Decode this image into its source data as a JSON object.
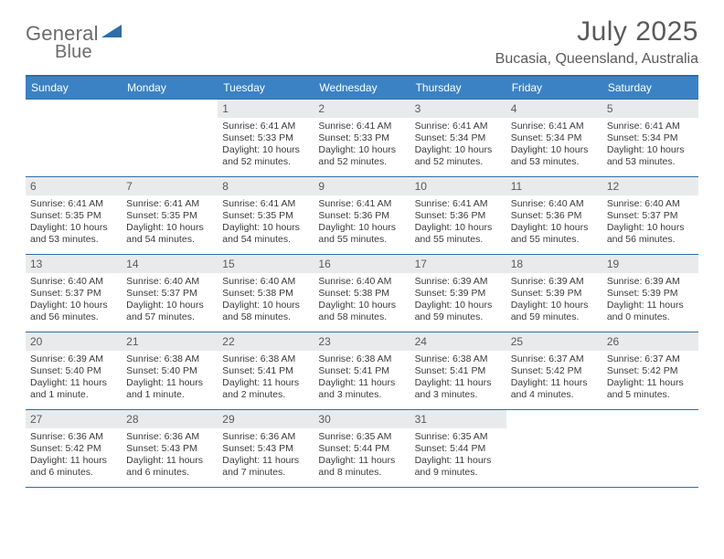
{
  "brand": {
    "word1": "General",
    "word2": "Blue"
  },
  "colors": {
    "header_bg": "#3b82c4",
    "rule": "#2e6da8",
    "daynum_bg": "#e9eaeb",
    "text": "#3a3a3a",
    "muted": "#5a5a5a",
    "logo_gray": "#6b6b6b",
    "logo_blue": "#3b82c4",
    "shape_fill": "#2e6da8"
  },
  "title": "July 2025",
  "location": "Bucasia, Queensland, Australia",
  "day_names": [
    "Sunday",
    "Monday",
    "Tuesday",
    "Wednesday",
    "Thursday",
    "Friday",
    "Saturday"
  ],
  "weeks": [
    [
      {
        "n": "",
        "sr": "",
        "ss": "",
        "dl": ""
      },
      {
        "n": "",
        "sr": "",
        "ss": "",
        "dl": ""
      },
      {
        "n": "1",
        "sr": "Sunrise: 6:41 AM",
        "ss": "Sunset: 5:33 PM",
        "dl": "Daylight: 10 hours and 52 minutes."
      },
      {
        "n": "2",
        "sr": "Sunrise: 6:41 AM",
        "ss": "Sunset: 5:33 PM",
        "dl": "Daylight: 10 hours and 52 minutes."
      },
      {
        "n": "3",
        "sr": "Sunrise: 6:41 AM",
        "ss": "Sunset: 5:34 PM",
        "dl": "Daylight: 10 hours and 52 minutes."
      },
      {
        "n": "4",
        "sr": "Sunrise: 6:41 AM",
        "ss": "Sunset: 5:34 PM",
        "dl": "Daylight: 10 hours and 53 minutes."
      },
      {
        "n": "5",
        "sr": "Sunrise: 6:41 AM",
        "ss": "Sunset: 5:34 PM",
        "dl": "Daylight: 10 hours and 53 minutes."
      }
    ],
    [
      {
        "n": "6",
        "sr": "Sunrise: 6:41 AM",
        "ss": "Sunset: 5:35 PM",
        "dl": "Daylight: 10 hours and 53 minutes."
      },
      {
        "n": "7",
        "sr": "Sunrise: 6:41 AM",
        "ss": "Sunset: 5:35 PM",
        "dl": "Daylight: 10 hours and 54 minutes."
      },
      {
        "n": "8",
        "sr": "Sunrise: 6:41 AM",
        "ss": "Sunset: 5:35 PM",
        "dl": "Daylight: 10 hours and 54 minutes."
      },
      {
        "n": "9",
        "sr": "Sunrise: 6:41 AM",
        "ss": "Sunset: 5:36 PM",
        "dl": "Daylight: 10 hours and 55 minutes."
      },
      {
        "n": "10",
        "sr": "Sunrise: 6:41 AM",
        "ss": "Sunset: 5:36 PM",
        "dl": "Daylight: 10 hours and 55 minutes."
      },
      {
        "n": "11",
        "sr": "Sunrise: 6:40 AM",
        "ss": "Sunset: 5:36 PM",
        "dl": "Daylight: 10 hours and 55 minutes."
      },
      {
        "n": "12",
        "sr": "Sunrise: 6:40 AM",
        "ss": "Sunset: 5:37 PM",
        "dl": "Daylight: 10 hours and 56 minutes."
      }
    ],
    [
      {
        "n": "13",
        "sr": "Sunrise: 6:40 AM",
        "ss": "Sunset: 5:37 PM",
        "dl": "Daylight: 10 hours and 56 minutes."
      },
      {
        "n": "14",
        "sr": "Sunrise: 6:40 AM",
        "ss": "Sunset: 5:37 PM",
        "dl": "Daylight: 10 hours and 57 minutes."
      },
      {
        "n": "15",
        "sr": "Sunrise: 6:40 AM",
        "ss": "Sunset: 5:38 PM",
        "dl": "Daylight: 10 hours and 58 minutes."
      },
      {
        "n": "16",
        "sr": "Sunrise: 6:40 AM",
        "ss": "Sunset: 5:38 PM",
        "dl": "Daylight: 10 hours and 58 minutes."
      },
      {
        "n": "17",
        "sr": "Sunrise: 6:39 AM",
        "ss": "Sunset: 5:39 PM",
        "dl": "Daylight: 10 hours and 59 minutes."
      },
      {
        "n": "18",
        "sr": "Sunrise: 6:39 AM",
        "ss": "Sunset: 5:39 PM",
        "dl": "Daylight: 10 hours and 59 minutes."
      },
      {
        "n": "19",
        "sr": "Sunrise: 6:39 AM",
        "ss": "Sunset: 5:39 PM",
        "dl": "Daylight: 11 hours and 0 minutes."
      }
    ],
    [
      {
        "n": "20",
        "sr": "Sunrise: 6:39 AM",
        "ss": "Sunset: 5:40 PM",
        "dl": "Daylight: 11 hours and 1 minute."
      },
      {
        "n": "21",
        "sr": "Sunrise: 6:38 AM",
        "ss": "Sunset: 5:40 PM",
        "dl": "Daylight: 11 hours and 1 minute."
      },
      {
        "n": "22",
        "sr": "Sunrise: 6:38 AM",
        "ss": "Sunset: 5:41 PM",
        "dl": "Daylight: 11 hours and 2 minutes."
      },
      {
        "n": "23",
        "sr": "Sunrise: 6:38 AM",
        "ss": "Sunset: 5:41 PM",
        "dl": "Daylight: 11 hours and 3 minutes."
      },
      {
        "n": "24",
        "sr": "Sunrise: 6:38 AM",
        "ss": "Sunset: 5:41 PM",
        "dl": "Daylight: 11 hours and 3 minutes."
      },
      {
        "n": "25",
        "sr": "Sunrise: 6:37 AM",
        "ss": "Sunset: 5:42 PM",
        "dl": "Daylight: 11 hours and 4 minutes."
      },
      {
        "n": "26",
        "sr": "Sunrise: 6:37 AM",
        "ss": "Sunset: 5:42 PM",
        "dl": "Daylight: 11 hours and 5 minutes."
      }
    ],
    [
      {
        "n": "27",
        "sr": "Sunrise: 6:36 AM",
        "ss": "Sunset: 5:42 PM",
        "dl": "Daylight: 11 hours and 6 minutes."
      },
      {
        "n": "28",
        "sr": "Sunrise: 6:36 AM",
        "ss": "Sunset: 5:43 PM",
        "dl": "Daylight: 11 hours and 6 minutes."
      },
      {
        "n": "29",
        "sr": "Sunrise: 6:36 AM",
        "ss": "Sunset: 5:43 PM",
        "dl": "Daylight: 11 hours and 7 minutes."
      },
      {
        "n": "30",
        "sr": "Sunrise: 6:35 AM",
        "ss": "Sunset: 5:44 PM",
        "dl": "Daylight: 11 hours and 8 minutes."
      },
      {
        "n": "31",
        "sr": "Sunrise: 6:35 AM",
        "ss": "Sunset: 5:44 PM",
        "dl": "Daylight: 11 hours and 9 minutes."
      },
      {
        "n": "",
        "sr": "",
        "ss": "",
        "dl": ""
      },
      {
        "n": "",
        "sr": "",
        "ss": "",
        "dl": ""
      }
    ]
  ]
}
